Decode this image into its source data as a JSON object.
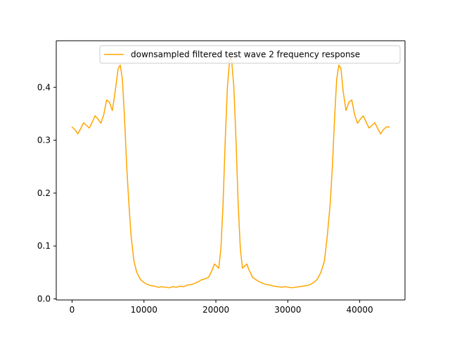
{
  "chart_data": {
    "type": "line",
    "title": "",
    "xlabel": "",
    "ylabel": "",
    "xlim": [
      -2200,
      46300
    ],
    "ylim": [
      -0.002,
      0.488
    ],
    "x_ticks": [
      {
        "value": 0,
        "label": "0"
      },
      {
        "value": 10000,
        "label": "10000"
      },
      {
        "value": 20000,
        "label": "20000"
      },
      {
        "value": 30000,
        "label": "30000"
      },
      {
        "value": 40000,
        "label": "40000"
      }
    ],
    "y_ticks": [
      {
        "value": 0.0,
        "label": "0.0"
      },
      {
        "value": 0.1,
        "label": "0.1"
      },
      {
        "value": 0.2,
        "label": "0.2"
      },
      {
        "value": 0.3,
        "label": "0.3"
      },
      {
        "value": 0.4,
        "label": "0.4"
      }
    ],
    "grid": false,
    "legend": {
      "placement": "top-right"
    },
    "series": [
      {
        "name": "downsampled filtered test wave 2 frequency response",
        "color": "#ffa500",
        "x": [
          0,
          400,
          800,
          1200,
          1600,
          2000,
          2400,
          2800,
          3200,
          3600,
          4000,
          4400,
          4800,
          5200,
          5600,
          6000,
          6400,
          6700,
          7000,
          7300,
          7600,
          7900,
          8200,
          8600,
          9000,
          9500,
          10000,
          10500,
          11000,
          11500,
          12000,
          12500,
          13000,
          13500,
          14000,
          14500,
          15000,
          15500,
          16000,
          16500,
          17000,
          17500,
          18000,
          18500,
          19000,
          19500,
          19800,
          20100,
          20400,
          20700,
          21000,
          21300,
          21600,
          21900,
          22050,
          22200,
          22500,
          22800,
          23100,
          23400,
          23700,
          24000,
          24300,
          24600,
          25100,
          25600,
          26100,
          26600,
          27100,
          27600,
          28100,
          28600,
          29100,
          29600,
          30100,
          30600,
          31100,
          31600,
          32100,
          32600,
          33100,
          33600,
          34100,
          34600,
          35100,
          35500,
          35900,
          36200,
          36500,
          36800,
          37100,
          37400,
          37700,
          38100,
          38500,
          38900,
          39300,
          39700,
          40100,
          40500,
          40900,
          41300,
          41700,
          42100,
          42500,
          42900,
          43300,
          43700,
          44100
        ],
        "values": [
          0.325,
          0.32,
          0.312,
          0.322,
          0.333,
          0.328,
          0.323,
          0.334,
          0.346,
          0.34,
          0.332,
          0.348,
          0.376,
          0.372,
          0.356,
          0.392,
          0.435,
          0.442,
          0.415,
          0.34,
          0.25,
          0.18,
          0.12,
          0.072,
          0.05,
          0.037,
          0.031,
          0.027,
          0.025,
          0.024,
          0.022,
          0.023,
          0.022,
          0.021,
          0.023,
          0.022,
          0.024,
          0.023,
          0.026,
          0.027,
          0.029,
          0.032,
          0.036,
          0.038,
          0.041,
          0.055,
          0.066,
          0.062,
          0.058,
          0.095,
          0.18,
          0.3,
          0.4,
          0.45,
          0.458,
          0.45,
          0.4,
          0.3,
          0.18,
          0.095,
          0.058,
          0.062,
          0.066,
          0.055,
          0.041,
          0.036,
          0.032,
          0.029,
          0.027,
          0.026,
          0.024,
          0.023,
          0.022,
          0.023,
          0.022,
          0.021,
          0.022,
          0.023,
          0.024,
          0.025,
          0.027,
          0.031,
          0.037,
          0.05,
          0.072,
          0.12,
          0.18,
          0.25,
          0.34,
          0.415,
          0.442,
          0.435,
          0.392,
          0.356,
          0.372,
          0.376,
          0.348,
          0.332,
          0.34,
          0.346,
          0.334,
          0.323,
          0.328,
          0.333,
          0.322,
          0.312,
          0.32,
          0.325,
          0.325
        ]
      }
    ]
  }
}
